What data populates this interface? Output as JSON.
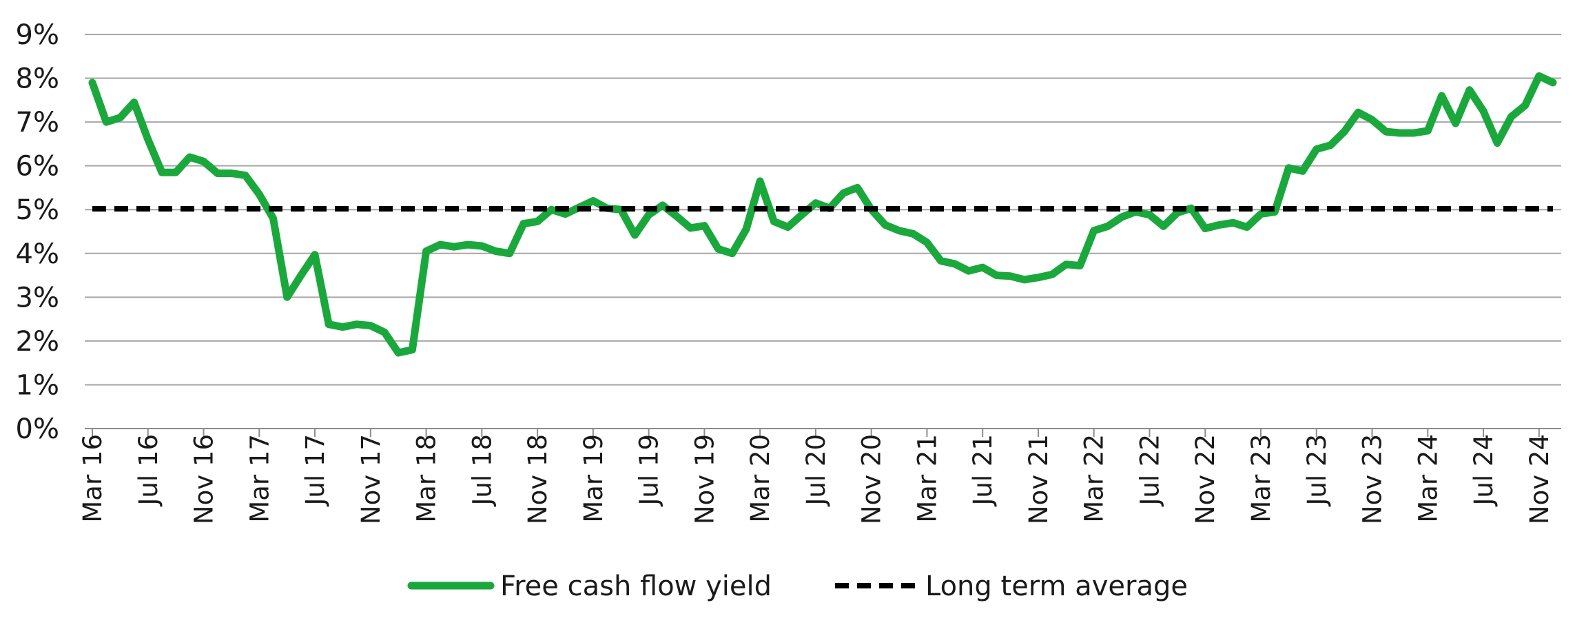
{
  "chart_data": {
    "type": "line",
    "x_tick_labels": [
      "Mar 16",
      "Jul 16",
      "Nov 16",
      "Mar 17",
      "Jul 17",
      "Nov 17",
      "Mar 18",
      "Jul 18",
      "Nov 18",
      "Mar 19",
      "Jul 19",
      "Nov 19",
      "Mar 20",
      "Jul 20",
      "Nov 20",
      "Mar 21",
      "Jul 21",
      "Nov 21",
      "Mar 22",
      "Jul 22",
      "Nov 22",
      "Mar 23",
      "Jul 23",
      "Nov 23",
      "Mar 24",
      "Jul 24",
      "Nov 24"
    ],
    "y_tick_labels": [
      "0%",
      "1%",
      "2%",
      "3%",
      "4%",
      "5%",
      "6%",
      "7%",
      "8%",
      "9%"
    ],
    "ylim": [
      0,
      9
    ],
    "grid": true,
    "legend_position": "bottom",
    "series": [
      {
        "name": "Free cash flow yield",
        "color": "#1aa83c",
        "style": "solid",
        "x": [
          "Mar 16",
          "Apr 16",
          "May 16",
          "Jun 16",
          "Jul 16",
          "Aug 16",
          "Sep 16",
          "Oct 16",
          "Nov 16",
          "Dec 16",
          "Jan 17",
          "Feb 17",
          "Mar 17",
          "Apr 17",
          "May 17",
          "Jun 17",
          "Jul 17",
          "Aug 17",
          "Sep 17",
          "Oct 17",
          "Nov 17",
          "Dec 17",
          "Jan 18",
          "Feb 18",
          "Mar 18",
          "Apr 18",
          "May 18",
          "Jun 18",
          "Jul 18",
          "Aug 18",
          "Sep 18",
          "Oct 18",
          "Nov 18",
          "Dec 18",
          "Jan 19",
          "Feb 19",
          "Mar 19",
          "Apr 19",
          "May 19",
          "Jun 19",
          "Jul 19",
          "Aug 19",
          "Sep 19",
          "Oct 19",
          "Nov 19",
          "Dec 19",
          "Jan 20",
          "Feb 20",
          "Mar 20",
          "Apr 20",
          "May 20",
          "Jun 20",
          "Jul 20",
          "Aug 20",
          "Sep 20",
          "Oct 20",
          "Nov 20",
          "Dec 20",
          "Jan 21",
          "Feb 21",
          "Mar 21",
          "Apr 21",
          "May 21",
          "Jun 21",
          "Jul 21",
          "Aug 21",
          "Sep 21",
          "Oct 21",
          "Nov 21",
          "Dec 21",
          "Jan 22",
          "Feb 22",
          "Mar 22",
          "Apr 22",
          "May 22",
          "Jun 22",
          "Jul 22",
          "Aug 22",
          "Sep 22",
          "Oct 22",
          "Nov 22",
          "Dec 22",
          "Jan 23",
          "Feb 23",
          "Mar 23",
          "Apr 23",
          "May 23",
          "Jun 23",
          "Jul 23",
          "Aug 23",
          "Sep 23",
          "Oct 23",
          "Nov 23",
          "Dec 23",
          "Jan 24",
          "Feb 24",
          "Mar 24",
          "Apr 24",
          "May 24",
          "Jun 24",
          "Jul 24",
          "Aug 24",
          "Sep 24",
          "Oct 24",
          "Nov 24",
          "Dec 24"
        ],
        "values": [
          7.9,
          7.0,
          7.1,
          7.45,
          6.6,
          5.85,
          5.85,
          6.2,
          6.1,
          5.83,
          5.83,
          5.78,
          5.35,
          4.8,
          3.0,
          3.5,
          3.97,
          2.38,
          2.32,
          2.38,
          2.35,
          2.2,
          1.73,
          1.8,
          4.05,
          4.2,
          4.15,
          4.2,
          4.17,
          4.05,
          4.0,
          4.68,
          4.73,
          5.0,
          4.9,
          5.05,
          5.2,
          5.03,
          5.0,
          4.42,
          4.88,
          5.1,
          4.85,
          4.58,
          4.63,
          4.1,
          4.0,
          4.55,
          5.65,
          4.73,
          4.6,
          4.88,
          5.15,
          5.03,
          5.38,
          5.5,
          5.0,
          4.65,
          4.52,
          4.45,
          4.25,
          3.83,
          3.76,
          3.6,
          3.68,
          3.5,
          3.48,
          3.4,
          3.45,
          3.52,
          3.75,
          3.72,
          4.52,
          4.62,
          4.83,
          4.95,
          4.88,
          4.62,
          4.93,
          5.03,
          4.57,
          4.65,
          4.7,
          4.6,
          4.9,
          4.95,
          5.95,
          5.88,
          6.38,
          6.47,
          6.78,
          7.22,
          7.05,
          6.78,
          6.75,
          6.75,
          6.8,
          7.6,
          6.97,
          7.73,
          7.25,
          6.52,
          7.12,
          7.38,
          8.05,
          7.9
        ]
      },
      {
        "name": "Long term average",
        "color": "#000000",
        "style": "dashed",
        "x": [
          "Mar 16",
          "Dec 24"
        ],
        "values": [
          5.02,
          5.02
        ]
      }
    ]
  }
}
